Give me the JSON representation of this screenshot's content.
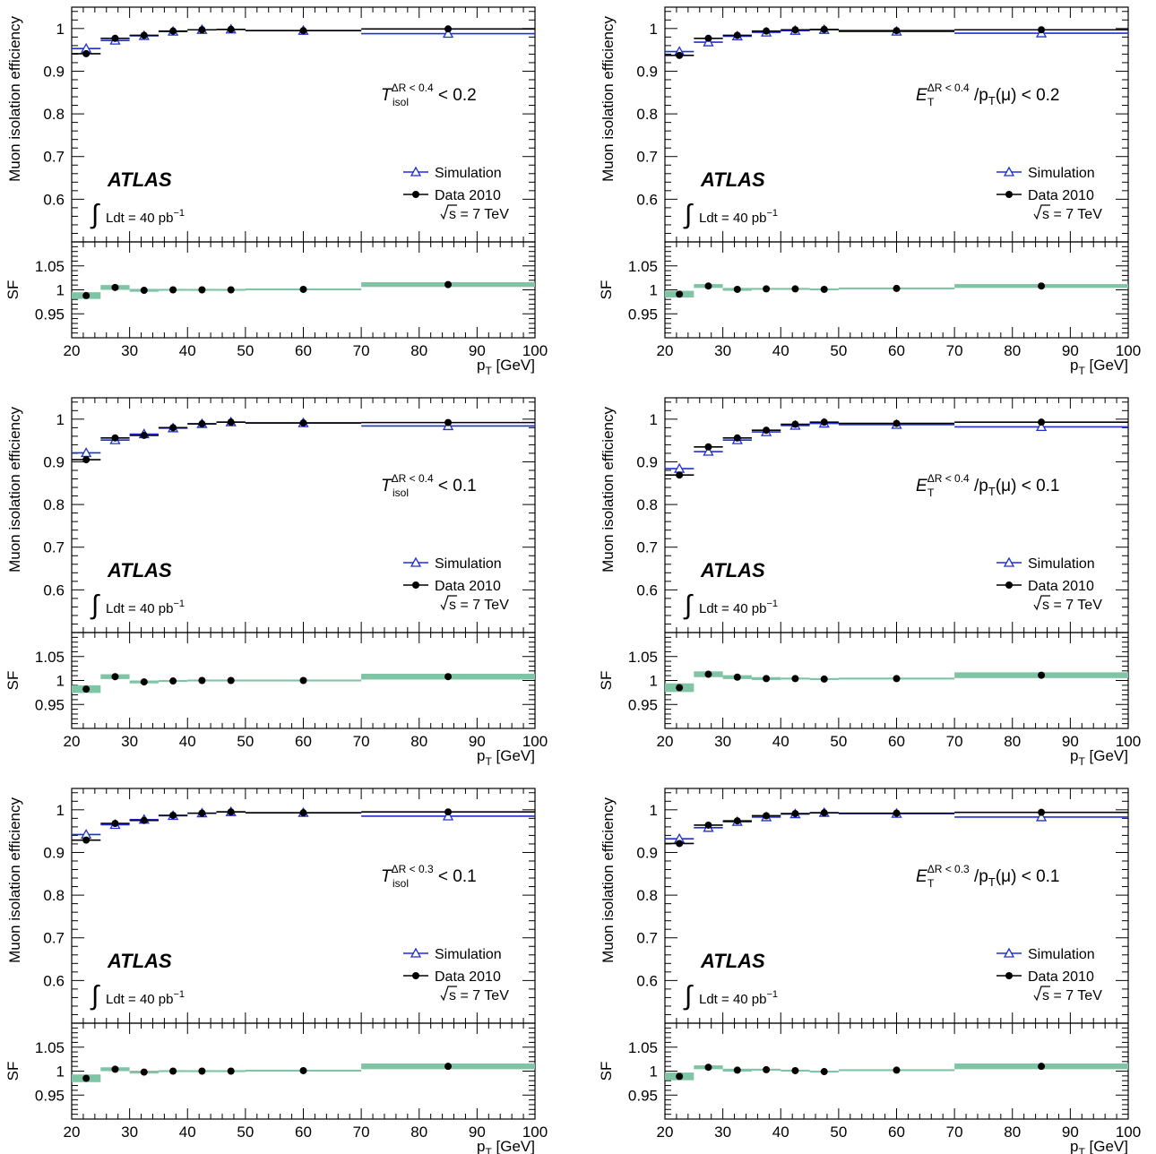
{
  "colors": {
    "simulation": "#1f2fd6",
    "data": "#000000",
    "band": "#7fc4a4"
  },
  "chart_data": [
    {
      "type": "scatter",
      "panel": "top-left",
      "cut_label": {
        "sym": "T",
        "sup": "ΔR < 0.4",
        "sub": "isol",
        "rest": " < 0.2"
      },
      "atlas_label": "ATLAS",
      "lumi_label": "Ldt = 40 pb",
      "lumi_exp": "−1",
      "energy_label": "s = 7 TeV",
      "ylabel": "Muon isolation efficiency",
      "ylabel_ratio": "SF",
      "xlabel": "p",
      "xlabel_sub": "T",
      "xlabel_unit": " [GeV]",
      "xlim": [
        20,
        100
      ],
      "ylim": [
        0.5,
        1.05
      ],
      "ylim_ratio": [
        0.9,
        1.1
      ],
      "xticks": [
        "20",
        "30",
        "40",
        "50",
        "60",
        "70",
        "80",
        "90",
        "100"
      ],
      "yticks": [
        "0.6",
        "0.7",
        "0.8",
        "0.9",
        "1"
      ],
      "yticks_ratio": [
        "0.95",
        "1",
        "1.05"
      ],
      "legend": [
        "Simulation",
        "Data 2010"
      ],
      "legend_position": "bottom-right",
      "bins": [
        [
          20,
          25
        ],
        [
          25,
          30
        ],
        [
          30,
          35
        ],
        [
          35,
          40
        ],
        [
          40,
          45
        ],
        [
          45,
          50
        ],
        [
          50,
          70
        ],
        [
          70,
          100
        ]
      ],
      "simulation": [
        0.953,
        0.972,
        0.983,
        0.993,
        0.997,
        0.998,
        0.995,
        0.988
      ],
      "data": [
        0.941,
        0.977,
        0.984,
        0.994,
        0.997,
        0.998,
        0.995,
        0.999
      ],
      "sf": [
        0.988,
        1.005,
        0.999,
        1.0,
        1.0,
        1.0,
        1.001,
        1.011
      ],
      "sf_err": [
        0.007,
        0.005,
        0.003,
        0.002,
        0.002,
        0.002,
        0.002,
        0.005
      ]
    },
    {
      "type": "scatter",
      "panel": "top-right",
      "cut_label": {
        "sym": "E",
        "sup": "ΔR < 0.4",
        "sub": "T",
        "rest": " /p",
        "rest_sub": "T",
        "rest_tail": "(μ) < 0.2"
      },
      "atlas_label": "ATLAS",
      "lumi_label": "Ldt = 40 pb",
      "lumi_exp": "−1",
      "energy_label": "s = 7 TeV",
      "ylabel": "Muon isolation efficiency",
      "ylabel_ratio": "SF",
      "xlabel": "p",
      "xlabel_sub": "T",
      "xlabel_unit": " [GeV]",
      "xlim": [
        20,
        100
      ],
      "ylim": [
        0.5,
        1.05
      ],
      "ylim_ratio": [
        0.9,
        1.1
      ],
      "xticks": [
        "20",
        "30",
        "40",
        "50",
        "60",
        "70",
        "80",
        "90",
        "100"
      ],
      "yticks": [
        "0.6",
        "0.7",
        "0.8",
        "0.9",
        "1"
      ],
      "yticks_ratio": [
        "0.95",
        "1",
        "1.05"
      ],
      "legend": [
        "Simulation",
        "Data 2010"
      ],
      "legend_position": "bottom-right",
      "bins": [
        [
          20,
          25
        ],
        [
          25,
          30
        ],
        [
          30,
          35
        ],
        [
          35,
          40
        ],
        [
          40,
          45
        ],
        [
          45,
          50
        ],
        [
          50,
          70
        ],
        [
          70,
          100
        ]
      ],
      "simulation": [
        0.946,
        0.968,
        0.982,
        0.991,
        0.995,
        0.997,
        0.993,
        0.989
      ],
      "data": [
        0.937,
        0.977,
        0.984,
        0.994,
        0.997,
        0.998,
        0.995,
        0.997
      ],
      "sf": [
        0.991,
        1.008,
        1.001,
        1.002,
        1.002,
        1.001,
        1.003,
        1.008
      ],
      "sf_err": [
        0.007,
        0.004,
        0.003,
        0.002,
        0.002,
        0.002,
        0.002,
        0.004
      ]
    },
    {
      "type": "scatter",
      "panel": "middle-left",
      "cut_label": {
        "sym": "T",
        "sup": "ΔR < 0.4",
        "sub": "isol",
        "rest": " < 0.1"
      },
      "atlas_label": "ATLAS",
      "lumi_label": "Ldt = 40 pb",
      "lumi_exp": "−1",
      "energy_label": "s = 7 TeV",
      "ylabel": "Muon isolation efficiency",
      "ylabel_ratio": "SF",
      "xlabel": "p",
      "xlabel_sub": "T",
      "xlabel_unit": " [GeV]",
      "xlim": [
        20,
        100
      ],
      "ylim": [
        0.5,
        1.05
      ],
      "ylim_ratio": [
        0.9,
        1.1
      ],
      "xticks": [
        "20",
        "30",
        "40",
        "50",
        "60",
        "70",
        "80",
        "90",
        "100"
      ],
      "yticks": [
        "0.6",
        "0.7",
        "0.8",
        "0.9",
        "1"
      ],
      "yticks_ratio": [
        "0.95",
        "1",
        "1.05"
      ],
      "legend": [
        "Simulation",
        "Data 2010"
      ],
      "legend_position": "bottom-right",
      "bins": [
        [
          20,
          25
        ],
        [
          25,
          30
        ],
        [
          30,
          35
        ],
        [
          35,
          40
        ],
        [
          40,
          45
        ],
        [
          45,
          50
        ],
        [
          50,
          70
        ],
        [
          70,
          100
        ]
      ],
      "simulation": [
        0.921,
        0.951,
        0.965,
        0.979,
        0.989,
        0.993,
        0.991,
        0.984
      ],
      "data": [
        0.905,
        0.956,
        0.962,
        0.98,
        0.989,
        0.993,
        0.991,
        0.992
      ],
      "sf": [
        0.982,
        1.008,
        0.997,
        0.999,
        1.0,
        1.0,
        1.0,
        1.008
      ],
      "sf_err": [
        0.008,
        0.005,
        0.003,
        0.002,
        0.002,
        0.002,
        0.002,
        0.006
      ]
    },
    {
      "type": "scatter",
      "panel": "middle-right",
      "cut_label": {
        "sym": "E",
        "sup": "ΔR < 0.4",
        "sub": "T",
        "rest": " /p",
        "rest_sub": "T",
        "rest_tail": "(μ) < 0.1"
      },
      "atlas_label": "ATLAS",
      "lumi_label": "Ldt = 40 pb",
      "lumi_exp": "−1",
      "energy_label": "s = 7 TeV",
      "ylabel": "Muon isolation efficiency",
      "ylabel_ratio": "SF",
      "xlabel": "p",
      "xlabel_sub": "T",
      "xlabel_unit": " [GeV]",
      "xlim": [
        20,
        100
      ],
      "ylim": [
        0.5,
        1.05
      ],
      "ylim_ratio": [
        0.9,
        1.1
      ],
      "xticks": [
        "20",
        "30",
        "40",
        "50",
        "60",
        "70",
        "80",
        "90",
        "100"
      ],
      "yticks": [
        "0.6",
        "0.7",
        "0.8",
        "0.9",
        "1"
      ],
      "yticks_ratio": [
        "0.95",
        "1",
        "1.05"
      ],
      "legend": [
        "Simulation",
        "Data 2010"
      ],
      "legend_position": "bottom-right",
      "bins": [
        [
          20,
          25
        ],
        [
          25,
          30
        ],
        [
          30,
          35
        ],
        [
          35,
          40
        ],
        [
          40,
          45
        ],
        [
          45,
          50
        ],
        [
          50,
          70
        ],
        [
          70,
          100
        ]
      ],
      "simulation": [
        0.884,
        0.924,
        0.951,
        0.97,
        0.985,
        0.99,
        0.987,
        0.982
      ],
      "data": [
        0.869,
        0.935,
        0.956,
        0.974,
        0.988,
        0.993,
        0.99,
        0.993
      ],
      "sf": [
        0.985,
        1.013,
        1.007,
        1.004,
        1.004,
        1.003,
        1.004,
        1.011
      ],
      "sf_err": [
        0.009,
        0.006,
        0.004,
        0.003,
        0.002,
        0.002,
        0.002,
        0.006
      ]
    },
    {
      "type": "scatter",
      "panel": "bottom-left",
      "cut_label": {
        "sym": "T",
        "sup": "ΔR < 0.3",
        "sub": "isol",
        "rest": " < 0.1"
      },
      "atlas_label": "ATLAS",
      "lumi_label": "Ldt = 40 pb",
      "lumi_exp": "−1",
      "energy_label": "s = 7 TeV",
      "ylabel": "Muon isolation efficiency",
      "ylabel_ratio": "SF",
      "xlabel": "p",
      "xlabel_sub": "T",
      "xlabel_unit": " [GeV]",
      "xlim": [
        20,
        100
      ],
      "ylim": [
        0.5,
        1.05
      ],
      "ylim_ratio": [
        0.9,
        1.1
      ],
      "xticks": [
        "20",
        "30",
        "40",
        "50",
        "60",
        "70",
        "80",
        "90",
        "100"
      ],
      "yticks": [
        "0.6",
        "0.7",
        "0.8",
        "0.9",
        "1"
      ],
      "yticks_ratio": [
        "0.95",
        "1",
        "1.05"
      ],
      "legend": [
        "Simulation",
        "Data 2010"
      ],
      "legend_position": "bottom-right",
      "bins": [
        [
          20,
          25
        ],
        [
          25,
          30
        ],
        [
          30,
          35
        ],
        [
          35,
          40
        ],
        [
          40,
          45
        ],
        [
          45,
          50
        ],
        [
          50,
          70
        ],
        [
          70,
          100
        ]
      ],
      "simulation": [
        0.942,
        0.965,
        0.977,
        0.986,
        0.992,
        0.995,
        0.993,
        0.985
      ],
      "data": [
        0.929,
        0.968,
        0.975,
        0.987,
        0.992,
        0.995,
        0.993,
        0.995
      ],
      "sf": [
        0.985,
        1.004,
        0.998,
        1.0,
        1.0,
        1.0,
        1.001,
        1.01
      ],
      "sf_err": [
        0.008,
        0.004,
        0.003,
        0.002,
        0.002,
        0.002,
        0.002,
        0.006
      ]
    },
    {
      "type": "scatter",
      "panel": "bottom-right",
      "cut_label": {
        "sym": "E",
        "sup": "ΔR < 0.3",
        "sub": "T",
        "rest": " /p",
        "rest_sub": "T",
        "rest_tail": "(μ) < 0.1"
      },
      "atlas_label": "ATLAS",
      "lumi_label": "Ldt = 40 pb",
      "lumi_exp": "−1",
      "energy_label": "s = 7 TeV",
      "ylabel": "Muon isolation efficiency",
      "ylabel_ratio": "SF",
      "xlabel": "p",
      "xlabel_sub": "T",
      "xlabel_unit": " [GeV]",
      "xlim": [
        20,
        100
      ],
      "ylim": [
        0.5,
        1.05
      ],
      "ylim_ratio": [
        0.9,
        1.1
      ],
      "xticks": [
        "20",
        "30",
        "40",
        "50",
        "60",
        "70",
        "80",
        "90",
        "100"
      ],
      "yticks": [
        "0.6",
        "0.7",
        "0.8",
        "0.9",
        "1"
      ],
      "yticks_ratio": [
        "0.95",
        "1",
        "1.05"
      ],
      "legend": [
        "Simulation",
        "Data 2010"
      ],
      "legend_position": "bottom-right",
      "bins": [
        [
          20,
          25
        ],
        [
          25,
          30
        ],
        [
          30,
          35
        ],
        [
          35,
          40
        ],
        [
          40,
          45
        ],
        [
          45,
          50
        ],
        [
          50,
          70
        ],
        [
          70,
          100
        ]
      ],
      "simulation": [
        0.932,
        0.958,
        0.972,
        0.983,
        0.99,
        0.993,
        0.991,
        0.983
      ],
      "data": [
        0.921,
        0.964,
        0.974,
        0.986,
        0.991,
        0.993,
        0.992,
        0.994
      ],
      "sf": [
        0.989,
        1.008,
        1.002,
        1.003,
        1.001,
        0.999,
        1.002,
        1.01
      ],
      "sf_err": [
        0.008,
        0.004,
        0.003,
        0.002,
        0.002,
        0.002,
        0.002,
        0.006
      ]
    }
  ]
}
